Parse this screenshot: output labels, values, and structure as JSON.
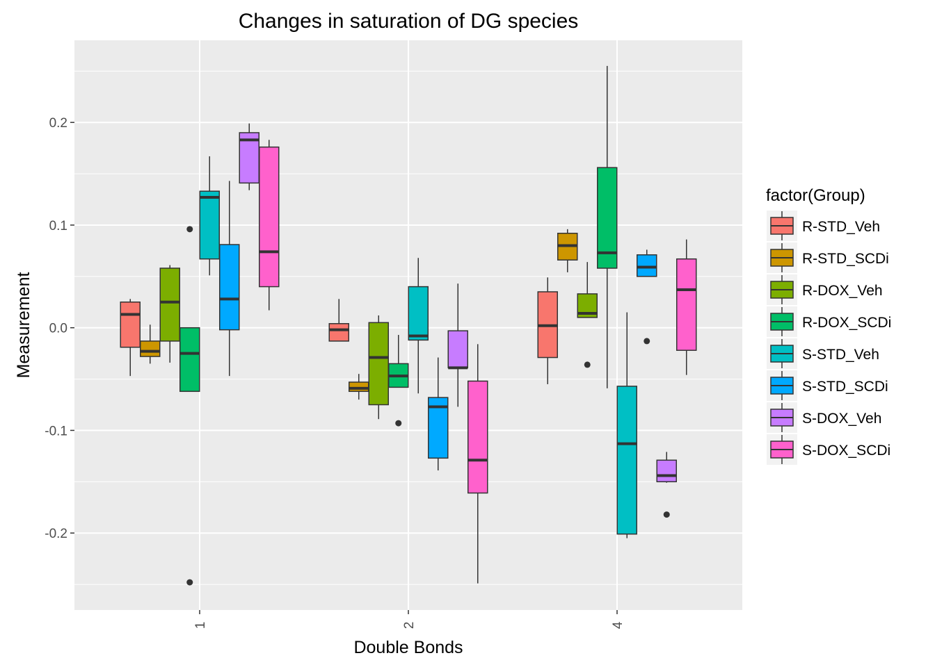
{
  "chart_data": {
    "type": "boxplot",
    "title": "Changes in saturation of DG species",
    "xlabel": "Double Bonds",
    "ylabel": "Measurement",
    "ylim": [
      -0.275,
      0.28
    ],
    "yticks": [
      -0.2,
      -0.1,
      0.0,
      0.1,
      0.2
    ],
    "ytick_labels": [
      "-0.2",
      "-0.1",
      "0.0",
      "0.1",
      "0.2"
    ],
    "categories": [
      "1",
      "2",
      "4"
    ],
    "legend": {
      "title": "factor(Group)",
      "position": "right"
    },
    "series": [
      {
        "name": "R-STD_Veh",
        "color": "#F8766D",
        "boxes": [
          {
            "min": -0.047,
            "q1": -0.019,
            "median": 0.013,
            "q3": 0.025,
            "max": 0.028,
            "outliers": []
          },
          {
            "min": -0.013,
            "q1": -0.013,
            "median": -0.002,
            "q3": 0.004,
            "max": 0.028,
            "outliers": []
          },
          {
            "min": -0.055,
            "q1": -0.029,
            "median": 0.002,
            "q3": 0.035,
            "max": 0.049,
            "outliers": []
          }
        ]
      },
      {
        "name": "R-STD_SCDi",
        "color": "#CD9600",
        "boxes": [
          {
            "min": -0.035,
            "q1": -0.028,
            "median": -0.023,
            "q3": -0.013,
            "max": 0.003,
            "outliers": []
          },
          {
            "min": -0.07,
            "q1": -0.062,
            "median": -0.059,
            "q3": -0.053,
            "max": -0.045,
            "outliers": []
          },
          {
            "min": 0.054,
            "q1": 0.066,
            "median": 0.08,
            "q3": 0.092,
            "max": 0.096,
            "outliers": []
          }
        ]
      },
      {
        "name": "R-DOX_Veh",
        "color": "#7CAE00",
        "boxes": [
          {
            "min": -0.034,
            "q1": -0.013,
            "median": 0.025,
            "q3": 0.058,
            "max": 0.061,
            "outliers": []
          },
          {
            "min": -0.089,
            "q1": -0.075,
            "median": -0.029,
            "q3": 0.005,
            "max": 0.012,
            "outliers": []
          },
          {
            "min": 0.01,
            "q1": 0.01,
            "median": 0.014,
            "q3": 0.033,
            "max": 0.064,
            "outliers": [
              -0.036
            ]
          }
        ]
      },
      {
        "name": "R-DOX_SCDi",
        "color": "#00BE67",
        "boxes": [
          {
            "min": -0.062,
            "q1": -0.062,
            "median": -0.025,
            "q3": 0.0,
            "max": 0.0,
            "outliers": [
              0.096,
              -0.248
            ]
          },
          {
            "min": -0.058,
            "q1": -0.058,
            "median": -0.047,
            "q3": -0.035,
            "max": -0.007,
            "outliers": [
              -0.093
            ]
          },
          {
            "min": -0.059,
            "q1": 0.058,
            "median": 0.073,
            "q3": 0.156,
            "max": 0.255,
            "outliers": []
          }
        ]
      },
      {
        "name": "S-STD_Veh",
        "color": "#00BFC4",
        "boxes": [
          {
            "min": 0.051,
            "q1": 0.067,
            "median": 0.127,
            "q3": 0.133,
            "max": 0.167,
            "outliers": []
          },
          {
            "min": -0.064,
            "q1": -0.012,
            "median": -0.008,
            "q3": 0.04,
            "max": 0.068,
            "outliers": []
          },
          {
            "min": -0.205,
            "q1": -0.201,
            "median": -0.113,
            "q3": -0.057,
            "max": 0.015,
            "outliers": []
          }
        ]
      },
      {
        "name": "S-STD_SCDi",
        "color": "#00A9FF",
        "boxes": [
          {
            "min": -0.047,
            "q1": -0.002,
            "median": 0.028,
            "q3": 0.081,
            "max": 0.143,
            "outliers": []
          },
          {
            "min": -0.139,
            "q1": -0.127,
            "median": -0.077,
            "q3": -0.068,
            "max": -0.029,
            "outliers": []
          },
          {
            "min": 0.05,
            "q1": 0.05,
            "median": 0.059,
            "q3": 0.071,
            "max": 0.076,
            "outliers": [
              -0.013
            ]
          }
        ]
      },
      {
        "name": "S-DOX_Veh",
        "color": "#C77CFF",
        "boxes": [
          {
            "min": 0.134,
            "q1": 0.141,
            "median": 0.183,
            "q3": 0.19,
            "max": 0.199,
            "outliers": []
          },
          {
            "min": -0.077,
            "q1": -0.039,
            "median": -0.039,
            "q3": -0.003,
            "max": 0.043,
            "outliers": []
          },
          {
            "min": -0.151,
            "q1": -0.15,
            "median": -0.144,
            "q3": -0.129,
            "max": -0.121,
            "outliers": [
              -0.182
            ]
          }
        ]
      },
      {
        "name": "S-DOX_SCDi",
        "color": "#FF61CC",
        "boxes": [
          {
            "min": 0.017,
            "q1": 0.04,
            "median": 0.074,
            "q3": 0.176,
            "max": 0.183,
            "outliers": []
          },
          {
            "min": -0.249,
            "q1": -0.161,
            "median": -0.129,
            "q3": -0.052,
            "max": -0.016,
            "outliers": []
          },
          {
            "min": -0.046,
            "q1": -0.022,
            "median": 0.037,
            "q3": 0.067,
            "max": 0.086,
            "outliers": []
          }
        ]
      }
    ]
  }
}
